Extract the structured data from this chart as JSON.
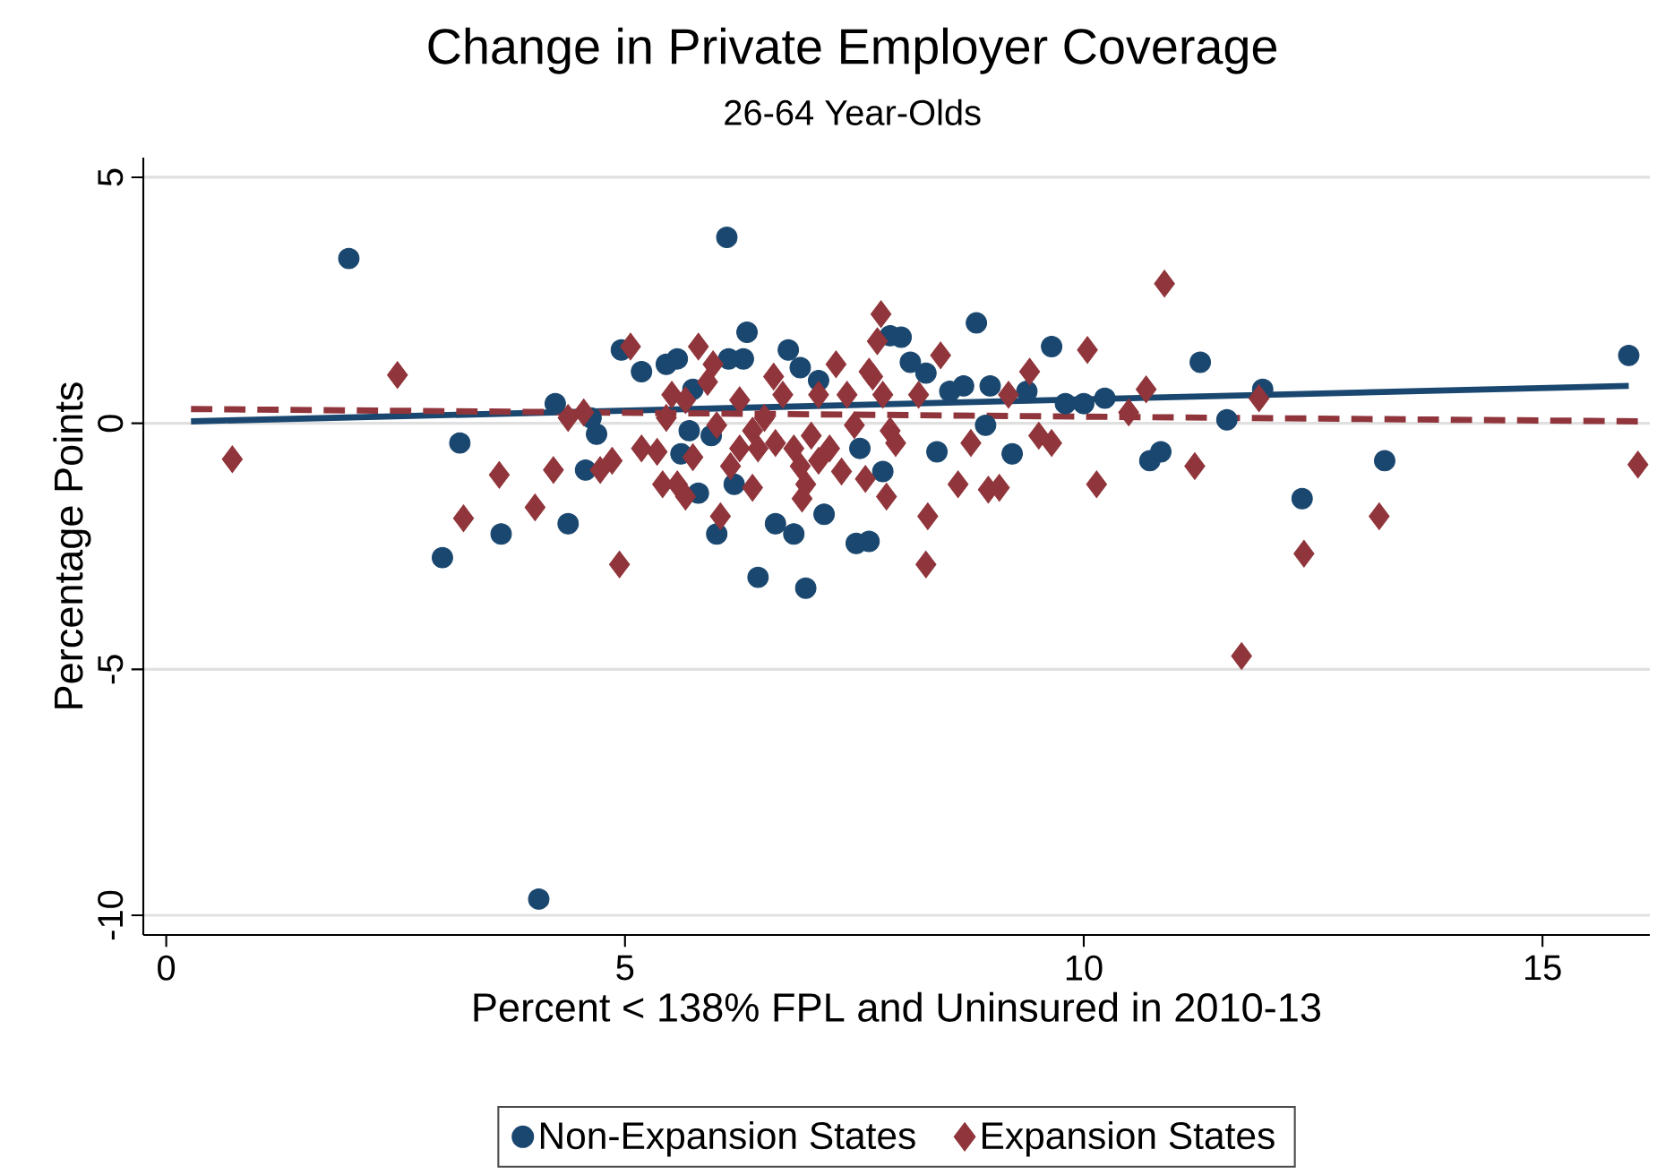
{
  "chart_data": {
    "type": "scatter",
    "title": "Change in Private Employer Coverage",
    "subtitle": "26-64 Year-Olds",
    "xlabel": "Percent < 138% FPL and Uninsured in 2010-13",
    "ylabel": "Percentage Points",
    "xlim": [
      -0.25,
      16.17
    ],
    "ylim": [
      -10.4,
      5.4
    ],
    "xticks": [
      0,
      5,
      10,
      15
    ],
    "yticks": [
      -10,
      -5,
      0,
      5
    ],
    "grid": "y",
    "legend": "bottom",
    "series": [
      {
        "name": "Non-Expansion States",
        "color": "#1a476f",
        "marker": "circle",
        "x": [
          1.99,
          3.2,
          3.01,
          3.65,
          4.38,
          4.24,
          4.69,
          4.57,
          4.06,
          6.11,
          4.63,
          4.96,
          5.18,
          5.45,
          5.57,
          5.74,
          5.7,
          5.94,
          6.0,
          5.8,
          5.61,
          6.19,
          6.33,
          6.29,
          6.13,
          6.78,
          6.91,
          7.11,
          6.64,
          6.84,
          7.17,
          6.45,
          6.97,
          7.52,
          7.66,
          7.81,
          7.56,
          7.89,
          8.83,
          8.01,
          8.11,
          8.28,
          8.54,
          8.69,
          8.98,
          9.65,
          9.38,
          9.8,
          10.0,
          10.23,
          8.4,
          9.22,
          8.93,
          10.72,
          10.84,
          11.27,
          11.95,
          11.56,
          12.38,
          13.28,
          15.94
        ],
        "values": [
          3.35,
          -0.4,
          -2.73,
          -2.25,
          -2.04,
          0.4,
          -0.22,
          -0.95,
          -9.67,
          3.78,
          0.11,
          1.49,
          1.05,
          1.2,
          1.31,
          0.69,
          -0.15,
          -0.25,
          -2.25,
          -1.42,
          -0.62,
          -1.24,
          1.85,
          1.31,
          1.31,
          1.49,
          1.13,
          0.87,
          -2.04,
          -2.25,
          -1.85,
          -3.13,
          -3.35,
          -2.44,
          -2.4,
          -0.98,
          -0.51,
          1.78,
          2.04,
          1.75,
          1.24,
          1.02,
          0.65,
          0.76,
          0.76,
          1.56,
          0.65,
          0.4,
          0.4,
          0.51,
          -0.58,
          -0.62,
          -0.04,
          -0.76,
          -0.58,
          1.24,
          0.69,
          0.07,
          -1.53,
          -0.76,
          1.38
        ]
      },
      {
        "name": "Expansion States",
        "color": "#90353b",
        "marker": "diamond",
        "x": [
          0.72,
          2.52,
          3.24,
          3.63,
          4.02,
          4.22,
          4.38,
          4.55,
          4.73,
          4.86,
          4.94,
          5.06,
          5.18,
          5.35,
          5.45,
          5.51,
          5.41,
          5.57,
          5.66,
          5.74,
          5.8,
          5.96,
          5.9,
          6.04,
          6.25,
          6.39,
          6.52,
          6.62,
          6.72,
          6.25,
          6.15,
          6.45,
          6.39,
          6.64,
          6.84,
          6.91,
          6.97,
          6.93,
          7.03,
          7.11,
          7.3,
          7.11,
          7.23,
          7.42,
          7.5,
          7.36,
          7.62,
          7.7,
          7.75,
          7.79,
          7.81,
          7.89,
          7.85,
          6.0,
          5.66,
          7.66,
          7.95,
          8.2,
          8.44,
          8.77,
          8.63,
          8.96,
          9.08,
          8.3,
          8.28,
          9.18,
          9.41,
          9.51,
          9.65,
          10.04,
          10.14,
          10.49,
          10.68,
          10.88,
          11.21,
          11.91,
          12.4,
          13.22,
          11.72,
          16.04
        ],
        "values": [
          -0.73,
          0.98,
          -1.93,
          -1.05,
          -1.71,
          -0.95,
          0.11,
          0.22,
          -0.95,
          -0.76,
          -2.87,
          1.56,
          -0.51,
          -0.58,
          0.11,
          0.58,
          -1.24,
          -1.24,
          -1.49,
          -0.69,
          1.56,
          1.2,
          0.84,
          -1.89,
          0.47,
          -0.15,
          0.11,
          0.95,
          0.58,
          -0.51,
          -0.87,
          -0.51,
          -1.31,
          -0.4,
          -0.51,
          -0.87,
          -1.24,
          -1.53,
          -0.25,
          0.58,
          1.2,
          -0.76,
          -0.51,
          0.58,
          -0.04,
          -0.98,
          -1.13,
          0.95,
          1.67,
          2.22,
          0.58,
          -0.15,
          -1.49,
          -0.04,
          0.47,
          1.05,
          -0.4,
          0.58,
          1.38,
          -0.4,
          -1.24,
          -1.35,
          -1.31,
          -1.89,
          -2.87,
          0.58,
          1.05,
          -0.25,
          -0.4,
          1.49,
          -1.24,
          0.22,
          0.69,
          2.84,
          -0.87,
          0.51,
          -2.65,
          -1.89,
          -4.73,
          -0.84
        ]
      },
      {
        "type": "line",
        "color": "#1a476f",
        "marker": "none",
        "line_style": "solid",
        "x": [
          0.27,
          15.94
        ],
        "values": [
          0.04,
          0.76
        ]
      },
      {
        "type": "line",
        "color": "#90353b",
        "marker": "none",
        "line_style": "dashed",
        "x": [
          0.27,
          16.04
        ],
        "values": [
          0.29,
          0.04
        ]
      }
    ]
  }
}
